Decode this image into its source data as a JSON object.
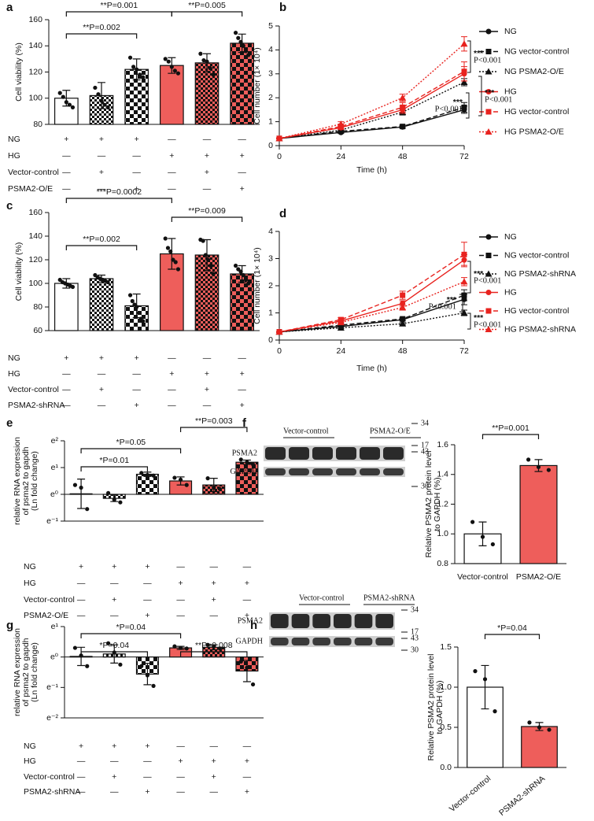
{
  "chart_data": [
    {
      "panel": "a",
      "type": "bar",
      "ylabel": "Cell viability (%)",
      "categories": [
        null,
        null,
        null,
        null,
        null,
        null
      ],
      "values": [
        100,
        102,
        122,
        125,
        127,
        142
      ],
      "errors": [
        6,
        10,
        8,
        6,
        7,
        7
      ],
      "points": [
        [
          104,
          101,
          97,
          95,
          93
        ],
        [
          108,
          103,
          98,
          95,
          93
        ],
        [
          131,
          124,
          122,
          118,
          116
        ],
        [
          130,
          128,
          124,
          121,
          119
        ],
        [
          134,
          129,
          128,
          123,
          118
        ],
        [
          150,
          146,
          143,
          140,
          136,
          133
        ]
      ],
      "colors": [
        "#ffffff",
        "#ffffff",
        "#ffffff",
        "#ee5e5b",
        "#ee5e5b",
        "#ee5e5b"
      ],
      "patterns": [
        "none",
        "check-small",
        "check-large",
        "none",
        "check-small",
        "check-large"
      ],
      "ylim": [
        80,
        160
      ],
      "yticks": [
        80,
        100,
        120,
        140,
        160
      ],
      "annotations": [
        {
          "text": "**P=0.001"
        },
        {
          "text": "**P=0.005"
        },
        {
          "text": "**P=0.002"
        }
      ],
      "conditions": [
        {
          "label": "NG",
          "marks": [
            "+",
            "+",
            "+",
            "—",
            "—",
            "—"
          ]
        },
        {
          "label": "HG",
          "marks": [
            "—",
            "—",
            "—",
            "+",
            "+",
            "+"
          ]
        },
        {
          "label": "Vector-control",
          "marks": [
            "—",
            "+",
            "—",
            "—",
            "+",
            "—"
          ]
        },
        {
          "label": "PSMA2-O/E",
          "marks": [
            "—",
            "—",
            "+",
            "—",
            "—",
            "+"
          ]
        }
      ]
    },
    {
      "panel": "b",
      "type": "line",
      "ylabel": "Cell number (1× 10⁴)",
      "xlabel": "Time (h)",
      "x": [
        0,
        24,
        48,
        72
      ],
      "xlim": [
        0,
        72
      ],
      "xticks": [
        0,
        24,
        48,
        72
      ],
      "ylim": [
        0,
        5
      ],
      "yticks": [
        0,
        1,
        2,
        3,
        4,
        5
      ],
      "series": [
        {
          "name": "NG",
          "color": "#111111",
          "dash": "solid",
          "marker": "circle",
          "values": [
            0.3,
            0.55,
            0.78,
            1.5
          ],
          "errors": [
            0.02,
            0.04,
            0.05,
            0.15
          ]
        },
        {
          "name": "NG vector-control",
          "color": "#111111",
          "dash": "dashed",
          "marker": "square",
          "values": [
            0.3,
            0.6,
            0.8,
            1.6
          ],
          "errors": [
            0.02,
            0.05,
            0.06,
            0.2
          ]
        },
        {
          "name": "NG PSMA2-O/E",
          "color": "#111111",
          "dash": "dotted",
          "marker": "triangle",
          "values": [
            0.3,
            0.65,
            1.4,
            2.65
          ],
          "errors": [
            0.02,
            0.05,
            0.12,
            0.15
          ]
        },
        {
          "name": "HG",
          "color": "#e8231f",
          "dash": "solid",
          "marker": "circle",
          "values": [
            0.3,
            0.75,
            1.5,
            3.0
          ],
          "errors": [
            0.02,
            0.08,
            0.15,
            0.3
          ]
        },
        {
          "name": "HG vector-control",
          "color": "#e8231f",
          "dash": "dashed",
          "marker": "square",
          "values": [
            0.3,
            0.8,
            1.6,
            3.1
          ],
          "errors": [
            0.02,
            0.1,
            0.2,
            0.4
          ]
        },
        {
          "name": "HG PSMA2-O/E",
          "color": "#e8231f",
          "dash": "dotted",
          "marker": "triangle",
          "values": [
            0.3,
            0.9,
            2.0,
            4.25
          ],
          "errors": [
            0.02,
            0.1,
            0.15,
            0.3
          ]
        }
      ],
      "annotations": [
        {
          "stars": "***",
          "text": "P<0.001"
        },
        {
          "stars": "***",
          "text": "P<0.001"
        },
        {
          "stars": "***",
          "text": "P<0.001"
        }
      ]
    },
    {
      "panel": "c",
      "type": "bar",
      "ylabel": "Cell viability (%)",
      "categories": [
        null,
        null,
        null,
        null,
        null,
        null
      ],
      "values": [
        100,
        104,
        81,
        125,
        124,
        108
      ],
      "errors": [
        4,
        3,
        10,
        13,
        13,
        7
      ],
      "points": [
        [
          103,
          101,
          100,
          99,
          98,
          97
        ],
        [
          107,
          105,
          104,
          103,
          102,
          101
        ],
        [
          90,
          85,
          82,
          80,
          75,
          70,
          68
        ],
        [
          138,
          130,
          127,
          120,
          118,
          112
        ],
        [
          137,
          136,
          124,
          120,
          115,
          108
        ],
        [
          115,
          112,
          110,
          107,
          103,
          100
        ]
      ],
      "colors": [
        "#ffffff",
        "#ffffff",
        "#ffffff",
        "#ee5e5b",
        "#ee5e5b",
        "#ee5e5b"
      ],
      "patterns": [
        "none",
        "check-small",
        "check-large",
        "none",
        "check-small",
        "check-large"
      ],
      "ylim": [
        60,
        160
      ],
      "yticks": [
        60,
        80,
        100,
        120,
        140,
        160
      ],
      "annotations": [
        {
          "text": "***P=0.0002"
        },
        {
          "text": "**P=0.009"
        },
        {
          "text": "**P=0.002"
        }
      ],
      "conditions": [
        {
          "label": "NG",
          "marks": [
            "+",
            "+",
            "+",
            "—",
            "—",
            "—"
          ]
        },
        {
          "label": "HG",
          "marks": [
            "—",
            "—",
            "—",
            "+",
            "+",
            "+"
          ]
        },
        {
          "label": "Vector-control",
          "marks": [
            "—",
            "+",
            "—",
            "—",
            "+",
            "—"
          ]
        },
        {
          "label": "PSMA2-shRNA",
          "marks": [
            "—",
            "—",
            "+",
            "—",
            "—",
            "+"
          ]
        }
      ]
    },
    {
      "panel": "d",
      "type": "line",
      "ylabel": "Cell number (1× 10⁴)",
      "xlabel": "Time (h)",
      "x": [
        0,
        24,
        48,
        72
      ],
      "xlim": [
        0,
        72
      ],
      "xticks": [
        0,
        24,
        48,
        72
      ],
      "ylim": [
        0,
        4
      ],
      "yticks": [
        0,
        1,
        2,
        3,
        4
      ],
      "series": [
        {
          "name": "NG",
          "color": "#111111",
          "dash": "solid",
          "marker": "circle",
          "values": [
            0.3,
            0.5,
            0.75,
            1.5
          ],
          "errors": [
            0.02,
            0.04,
            0.05,
            0.2
          ]
        },
        {
          "name": "NG vector-control",
          "color": "#111111",
          "dash": "dashed",
          "marker": "square",
          "values": [
            0.3,
            0.55,
            0.78,
            1.65
          ],
          "errors": [
            0.02,
            0.04,
            0.05,
            0.2
          ]
        },
        {
          "name": "NG PSMA2-shRNA",
          "color": "#111111",
          "dash": "dotted",
          "marker": "triangle",
          "values": [
            0.3,
            0.45,
            0.6,
            1.0
          ],
          "errors": [
            0.02,
            0.03,
            0.04,
            0.1
          ]
        },
        {
          "name": "HG",
          "color": "#e8231f",
          "dash": "solid",
          "marker": "circle",
          "values": [
            0.3,
            0.7,
            1.35,
            2.95
          ],
          "errors": [
            0.02,
            0.06,
            0.1,
            0.2
          ]
        },
        {
          "name": "HG vector-control",
          "color": "#e8231f",
          "dash": "dashed",
          "marker": "square",
          "values": [
            0.3,
            0.75,
            1.65,
            3.15
          ],
          "errors": [
            0.02,
            0.08,
            0.15,
            0.45
          ]
        },
        {
          "name": "HG PSMA2-shRNA",
          "color": "#e8231f",
          "dash": "dotted",
          "marker": "triangle",
          "values": [
            0.3,
            0.65,
            1.2,
            2.15
          ],
          "errors": [
            0.02,
            0.05,
            0.1,
            0.15
          ]
        }
      ],
      "annotations": [
        {
          "stars": "***",
          "text": "P<0.001"
        },
        {
          "stars": "***",
          "text": "P<0.001"
        },
        {
          "stars": "***",
          "text": "P<0.001"
        }
      ]
    },
    {
      "panel": "e",
      "type": "bar",
      "ylabel_lines": [
        "relative RNA expression",
        "of psma2 to gapdh",
        "(Ln fold change)"
      ],
      "categories": [
        null,
        null,
        null,
        null,
        null,
        null
      ],
      "values": [
        0.02,
        -0.15,
        0.75,
        0.5,
        0.35,
        1.2
      ],
      "errors": [
        0.55,
        0.12,
        0.08,
        0.15,
        0.25,
        0.08
      ],
      "points": [
        [
          0.35,
          0.25,
          -0.55
        ],
        [
          0.05,
          -0.2,
          -0.3
        ],
        [
          0.8,
          0.72,
          0.7
        ],
        [
          0.62,
          0.55,
          0.35
        ],
        [
          0.6,
          0.25,
          0.2
        ],
        [
          1.3,
          1.2,
          1.12
        ]
      ],
      "colors": [
        "#ffffff",
        "#ffffff",
        "#ffffff",
        "#ee5e5b",
        "#ee5e5b",
        "#ee5e5b"
      ],
      "patterns": [
        "none",
        "check-small",
        "check-large",
        "none",
        "check-small",
        "check-large"
      ],
      "ylim": [
        -1,
        2
      ],
      "yticks": [
        {
          "value": -1,
          "label": "e⁻¹"
        },
        {
          "value": 0,
          "label": "e⁰"
        },
        {
          "value": 1,
          "label": "e¹"
        },
        {
          "value": 2,
          "label": "e²"
        }
      ],
      "annotations": [
        {
          "text": "**P=0.003"
        },
        {
          "text": "*P=0.05"
        },
        {
          "text": "*P=0.01"
        }
      ],
      "conditions": [
        {
          "label": "NG",
          "marks": [
            "+",
            "+",
            "+",
            "—",
            "—",
            "—"
          ]
        },
        {
          "label": "HG",
          "marks": [
            "—",
            "—",
            "—",
            "+",
            "+",
            "+"
          ]
        },
        {
          "label": "Vector-control",
          "marks": [
            "—",
            "+",
            "—",
            "—",
            "+",
            "—"
          ]
        },
        {
          "label": "PSMA2-O/E",
          "marks": [
            "—",
            "—",
            "+",
            "—",
            "—",
            "+"
          ]
        }
      ]
    },
    {
      "panel": "f",
      "type": "bar",
      "ylabel_lines": [
        "Relative PSMA2 protein level",
        "to GAPDH (%)"
      ],
      "categories": [
        "Vector-control",
        "PSMA2-O/E"
      ],
      "values": [
        1.0,
        1.46
      ],
      "errors": [
        0.08,
        0.04
      ],
      "points": [
        [
          1.08,
          0.98,
          0.93
        ],
        [
          1.5,
          1.45,
          1.43
        ]
      ],
      "colors": [
        "#ffffff",
        "#ee5e5b"
      ],
      "patterns": [
        "none",
        "none"
      ],
      "ylim": [
        0.8,
        1.6
      ],
      "yticks": [
        {
          "value": 0.8,
          "label": "0.8"
        },
        {
          "value": 1.0,
          "label": "1.0"
        },
        {
          "value": 1.2,
          "label": "1.2"
        },
        {
          "value": 1.4,
          "label": "1.4"
        },
        {
          "value": 1.6,
          "label": "1.6"
        }
      ],
      "annotations": [
        {
          "text": "**P=0.001"
        }
      ]
    },
    {
      "panel": "g",
      "type": "bar",
      "ylabel_lines": [
        "relative RNA expression",
        "of psma2 to gapdh",
        "(Ln fold change)"
      ],
      "categories": [
        null,
        null,
        null,
        null,
        null,
        null
      ],
      "values": [
        0.02,
        0.1,
        -0.56,
        0.3,
        0.32,
        -0.46
      ],
      "errors": [
        0.3,
        0.3,
        0.35,
        0.05,
        0.08,
        0.35
      ],
      "points": [
        [
          0.3,
          0.05,
          -0.3
        ],
        [
          0.45,
          0.15,
          -0.25
        ],
        [
          -0.3,
          -0.6,
          -0.95
        ],
        [
          0.35,
          0.3,
          0.28
        ],
        [
          0.4,
          0.35,
          0.28
        ],
        [
          -0.15,
          -0.35,
          -0.9
        ]
      ],
      "colors": [
        "#ffffff",
        "#ffffff",
        "#ffffff",
        "#ee5e5b",
        "#ee5e5b",
        "#ee5e5b"
      ],
      "patterns": [
        "none",
        "check-small",
        "check-large",
        "none",
        "check-small",
        "check-large"
      ],
      "ylim": [
        -2,
        1
      ],
      "yticks": [
        {
          "value": -2,
          "label": "e⁻²"
        },
        {
          "value": -1,
          "label": "e⁻¹"
        },
        {
          "value": 0,
          "label": "e⁰"
        },
        {
          "value": 1,
          "label": "e¹"
        }
      ],
      "annotations": [
        {
          "text": "*P=0.04"
        },
        {
          "text": "*P=0.04"
        },
        {
          "text": "**P=0.008"
        }
      ],
      "conditions": [
        {
          "label": "NG",
          "marks": [
            "+",
            "+",
            "+",
            "—",
            "—",
            "—"
          ]
        },
        {
          "label": "HG",
          "marks": [
            "—",
            "—",
            "—",
            "+",
            "+",
            "+"
          ]
        },
        {
          "label": "Vector-control",
          "marks": [
            "—",
            "+",
            "—",
            "—",
            "+",
            "—"
          ]
        },
        {
          "label": "PSMA2-shRNA",
          "marks": [
            "—",
            "—",
            "+",
            "—",
            "—",
            "+"
          ]
        }
      ]
    },
    {
      "panel": "h",
      "type": "bar",
      "ylabel_lines": [
        "Relative PSMA2 protein level",
        "to GAPDH (%)"
      ],
      "categories": [
        "Vector-control",
        "PSMA2-shRNA"
      ],
      "values": [
        1.0,
        0.51
      ],
      "errors": [
        0.27,
        0.05
      ],
      "points": [
        [
          1.2,
          1.1,
          0.7
        ],
        [
          0.56,
          0.5,
          0.47
        ]
      ],
      "colors": [
        "#ffffff",
        "#ee5e5b"
      ],
      "patterns": [
        "none",
        "none"
      ],
      "ylim": [
        0,
        1.5
      ],
      "yticks": [
        {
          "value": 0,
          "label": "0.0"
        },
        {
          "value": 0.5,
          "label": "0.5"
        },
        {
          "value": 1.0,
          "label": "1.0"
        },
        {
          "value": 1.5,
          "label": "1.5"
        }
      ],
      "annotations": [
        {
          "text": "*P=0.04"
        }
      ]
    }
  ],
  "blots": [
    {
      "groups": [
        "Vector-control",
        "PSMA2-O/E"
      ],
      "rows": [
        "PSMA2",
        "GAPDH"
      ],
      "markers": [
        "34",
        "17",
        "43",
        "30"
      ]
    },
    {
      "groups": [
        "Vector-control",
        "PSMA2-shRNA"
      ],
      "rows": [
        "PSMA2",
        "GAPDH"
      ],
      "markers": [
        "34",
        "17",
        "43",
        "30"
      ]
    }
  ]
}
